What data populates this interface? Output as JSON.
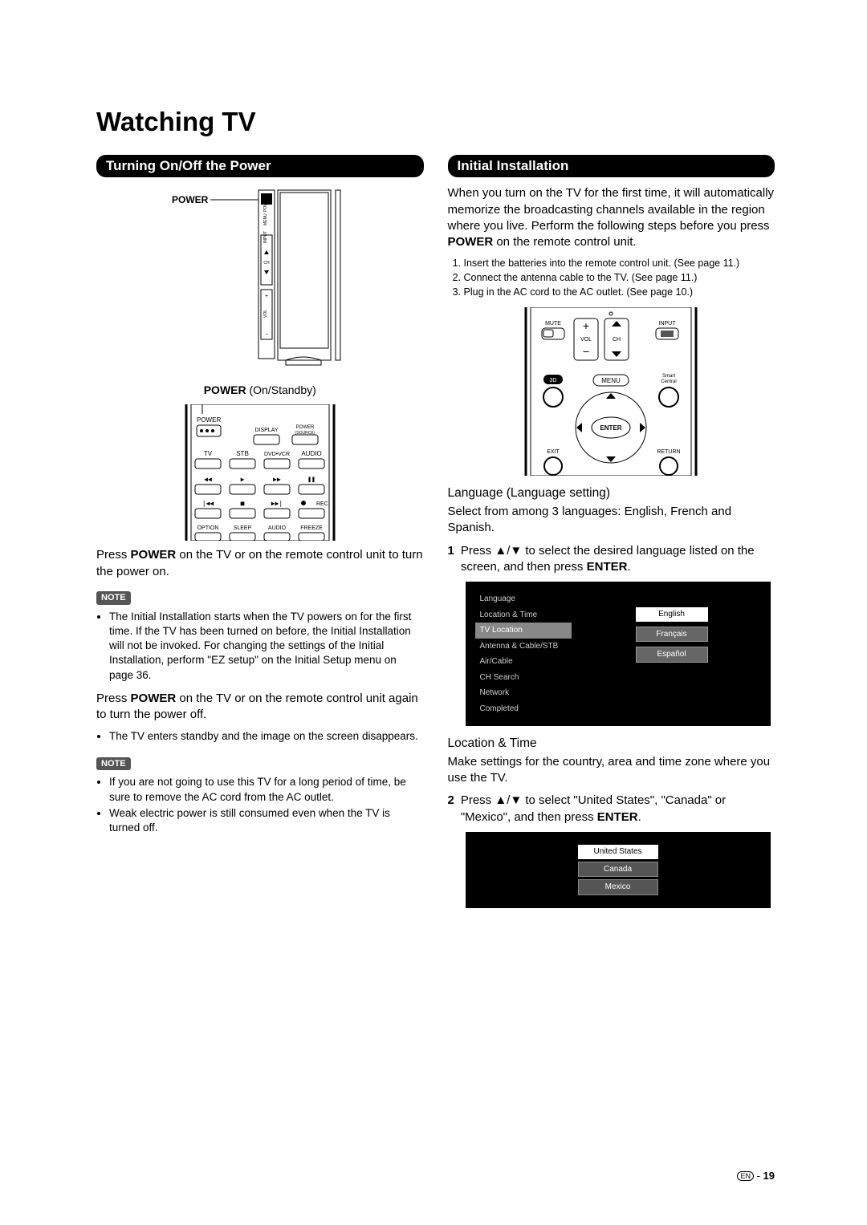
{
  "page": {
    "title": "Watching TV",
    "number": "19",
    "lang_code": "EN"
  },
  "left": {
    "section_title": "Turning On/Off the Power",
    "power_label": "POWER",
    "tv_side_labels": [
      "POWER",
      "MENU",
      "INPUT",
      "CH",
      "VOL"
    ],
    "caption_bold": "POWER",
    "caption_rest": " (On/Standby)",
    "remote_top": {
      "power": "POWER",
      "display": "DISPLAY",
      "power_source": "POWER\n(SOURCE)",
      "row": [
        "TV",
        "STB",
        "DVD•VCR",
        "AUDIO"
      ],
      "rec": "REC",
      "bottom": [
        "OPTION",
        "SLEEP",
        "AUDIO",
        "FREEZE"
      ]
    },
    "press_on_1": "Press ",
    "press_on_bold": "POWER",
    "press_on_2": " on the TV or on the remote control unit to turn the power on.",
    "note_label": "NOTE",
    "note1_bullets": [
      "The Initial Installation starts when the TV powers on for the first time. If the TV has been turned on before, the Initial Installation will not be invoked. For changing the settings of the Initial Installation, perform \"EZ setup\" on the Initial Setup menu on page 36."
    ],
    "press_off_1": "Press ",
    "press_off_bold": "POWER",
    "press_off_2": " on the TV or on the remote control unit again to turn the power off.",
    "off_bullets": [
      "The TV enters standby and the image on the screen disappears."
    ],
    "note2_bullets": [
      "If you are not going to use this TV for a long period of time, be sure to remove the AC cord from the AC outlet.",
      "Weak electric power is still consumed even when the TV is turned off."
    ]
  },
  "right": {
    "section_title": "Initial Installation",
    "intro_1": "When you turn on the TV for the first time, it will automatically memorize the broadcasting channels available in the region where you live. Perform the following steps before you press ",
    "intro_bold": "POWER",
    "intro_2": " on the remote control unit.",
    "steps": [
      "Insert the batteries into the remote control unit. (See page 11.)",
      "Connect the antenna cable to the TV. (See page 11.)",
      "Plug in the AC cord to the AC outlet. (See page 10.)"
    ],
    "remote_labels": {
      "mute": "MUTE",
      "vol": "VOL",
      "ch": "CH",
      "input": "INPUT",
      "threeD": "3D",
      "menu": "MENU",
      "smart": "Smart\nCentral",
      "enter": "ENTER",
      "exit": "EXIT",
      "return": "RETURN"
    },
    "lang_head": "Language (Language setting)",
    "lang_body": "Select from among 3 languages: English, French and Spanish.",
    "step1_num": "1",
    "step1_a": "Press ▲/▼ to select the desired language listed on the screen, and then press ",
    "step1_bold": "ENTER",
    "step1_b": ".",
    "lang_menu": [
      "Language",
      "Location & Time",
      "TV Location",
      "Antenna & Cable/STB",
      "Air/Cable",
      "CH Search",
      "Network",
      "Completed"
    ],
    "lang_menu_selected_index": 2,
    "lang_options": [
      "English",
      "Français",
      "Español"
    ],
    "loc_head": "Location & Time",
    "loc_body": "Make settings for the country, area and time zone where you use the TV.",
    "step2_num": "2",
    "step2_a": "Press ▲/▼ to select \"United States\", \"Canada\" or \"Mexico\", and then press ",
    "step2_bold": "ENTER",
    "step2_b": ".",
    "loc_options": [
      "United States",
      "Canada",
      "Mexico"
    ]
  },
  "colors": {
    "black": "#000000",
    "grey": "#888888",
    "darkgrey": "#555555"
  }
}
